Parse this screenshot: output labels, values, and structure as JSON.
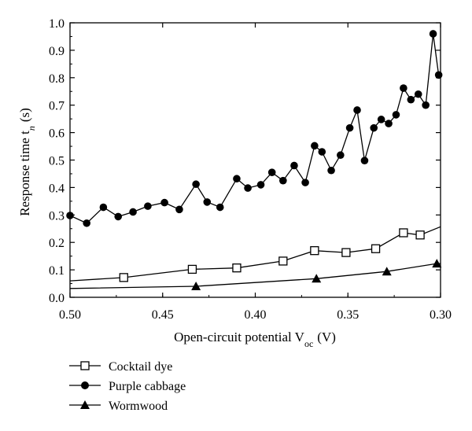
{
  "chart_data": {
    "type": "line",
    "xlabel": "Open-circuit potential V",
    "xlabel_sub": "oc",
    "xlabel_unit": "(V)",
    "ylabel": "Response time t",
    "ylabel_sub": "n",
    "ylabel_unit": "(s)",
    "xlim": [
      0.5,
      0.3
    ],
    "x_reversed": true,
    "ylim": [
      0.0,
      1.0
    ],
    "x_ticks": [
      0.5,
      0.45,
      0.4,
      0.35,
      0.3
    ],
    "x_tick_labels": [
      "0.50",
      "0.45",
      "0.40",
      "0.35",
      "0.30"
    ],
    "y_ticks": [
      0.0,
      0.1,
      0.2,
      0.3,
      0.4,
      0.5,
      0.6,
      0.7,
      0.8,
      0.9,
      1.0
    ],
    "y_tick_labels": [
      "0.0",
      "0.1",
      "0.2",
      "0.3",
      "0.4",
      "0.5",
      "0.6",
      "0.7",
      "0.8",
      "0.9",
      "1.0"
    ],
    "grid": false,
    "legend_position": "bottom-left, below plot",
    "series": [
      {
        "name": "Cocktail dye",
        "marker": "open-square",
        "line_start": [
          0.5,
          0.06
        ],
        "line_end": [
          0.3,
          0.257
        ],
        "points": [
          [
            0.471,
            0.072
          ],
          [
            0.434,
            0.102
          ],
          [
            0.41,
            0.107
          ],
          [
            0.385,
            0.132
          ],
          [
            0.368,
            0.17
          ],
          [
            0.351,
            0.163
          ],
          [
            0.335,
            0.177
          ],
          [
            0.32,
            0.235
          ],
          [
            0.311,
            0.227
          ]
        ]
      },
      {
        "name": "Purple cabbage",
        "marker": "filled-circle",
        "line_start": [
          0.5,
          0.298
        ],
        "line_end": [
          0.3,
          0.81
        ],
        "points": [
          [
            0.5,
            0.298
          ],
          [
            0.491,
            0.27
          ],
          [
            0.482,
            0.328
          ],
          [
            0.474,
            0.294
          ],
          [
            0.466,
            0.311
          ],
          [
            0.458,
            0.332
          ],
          [
            0.449,
            0.345
          ],
          [
            0.441,
            0.32
          ],
          [
            0.432,
            0.412
          ],
          [
            0.426,
            0.347
          ],
          [
            0.419,
            0.328
          ],
          [
            0.41,
            0.432
          ],
          [
            0.404,
            0.398
          ],
          [
            0.397,
            0.41
          ],
          [
            0.391,
            0.455
          ],
          [
            0.385,
            0.425
          ],
          [
            0.379,
            0.48
          ],
          [
            0.373,
            0.418
          ],
          [
            0.368,
            0.552
          ],
          [
            0.364,
            0.53
          ],
          [
            0.359,
            0.462
          ],
          [
            0.354,
            0.518
          ],
          [
            0.349,
            0.617
          ],
          [
            0.345,
            0.682
          ],
          [
            0.341,
            0.498
          ],
          [
            0.336,
            0.617
          ],
          [
            0.332,
            0.648
          ],
          [
            0.328,
            0.633
          ],
          [
            0.324,
            0.665
          ],
          [
            0.32,
            0.762
          ],
          [
            0.316,
            0.72
          ],
          [
            0.312,
            0.74
          ],
          [
            0.308,
            0.7
          ],
          [
            0.304,
            0.96
          ],
          [
            0.301,
            0.81
          ]
        ]
      },
      {
        "name": "Wormwood",
        "marker": "filled-triangle",
        "line_start": [
          0.5,
          0.032
        ],
        "line_end": [
          0.3,
          0.123
        ],
        "points": [
          [
            0.432,
            0.04
          ],
          [
            0.367,
            0.068
          ],
          [
            0.329,
            0.094
          ],
          [
            0.302,
            0.123
          ]
        ]
      }
    ]
  }
}
